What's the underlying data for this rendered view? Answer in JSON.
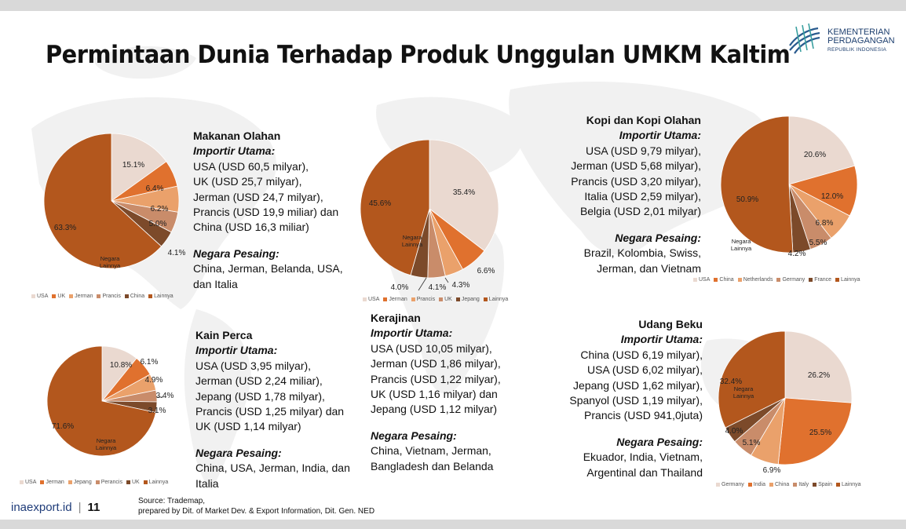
{
  "title": "Permintaan Dunia Terhadap Produk Unggulan UMKM Kaltim",
  "logo": {
    "line1": "KEMENTERIAN",
    "line2": "PERDAGANGAN",
    "line3": "REPUBLIK INDONESIA"
  },
  "footer": {
    "site": "inaexport.id",
    "page": "11"
  },
  "source": {
    "line1": "Source: Trademap,",
    "line2": "prepared by Dit. of Market Dev. & Export Information, Dit. Gen. NED"
  },
  "colors": {
    "light": "#ead9d0",
    "orange": "#e0712e",
    "peach": "#eaa16b",
    "tan": "#c98c6a",
    "brown": "#7c4a2a",
    "main": "#b3571d"
  },
  "chart_data": [
    {
      "type": "pie",
      "title": "",
      "labels": [
        "USA",
        "UK",
        "Jerman",
        "Prancis",
        "China",
        "Lainnya"
      ],
      "values": [
        15.1,
        6.4,
        6.2,
        5.0,
        4.1,
        63.3
      ],
      "value_labels": [
        "15.1%",
        "6.4%",
        "6.2%",
        "5.0%",
        "4.1%",
        "63.3%"
      ],
      "slice_annotation": "Negara Lainnya",
      "colors": [
        "#ead9d0",
        "#e0712e",
        "#eaa16b",
        "#c98c6a",
        "#7c4a2a",
        "#b3571d"
      ],
      "legend": "bottom"
    },
    {
      "type": "pie",
      "title": "",
      "labels": [
        "USA",
        "Jerman",
        "Prancis",
        "UK",
        "Jepang",
        "Lainnya"
      ],
      "values": [
        35.4,
        6.6,
        4.3,
        4.1,
        4.0,
        45.6
      ],
      "value_labels": [
        "35.4%",
        "6.6%",
        "4.3%",
        "4.1%",
        "4.0%",
        "45.6%"
      ],
      "slice_annotation": "Negara Lainnya",
      "colors": [
        "#ead9d0",
        "#e0712e",
        "#eaa16b",
        "#c98c6a",
        "#7c4a2a",
        "#b3571d"
      ],
      "legend": "bottom"
    },
    {
      "type": "pie",
      "title": "",
      "labels": [
        "USA",
        "China",
        "Netherlands",
        "Germany",
        "France",
        "Lainnya"
      ],
      "values": [
        20.6,
        12.0,
        6.8,
        5.5,
        4.2,
        50.9
      ],
      "value_labels": [
        "20.6%",
        "12.0%",
        "6.8%",
        "5.5%",
        "4.2%",
        "50.9%"
      ],
      "slice_annotation": "Negara Lainnya",
      "colors": [
        "#ead9d0",
        "#e0712e",
        "#eaa16b",
        "#c98c6a",
        "#7c4a2a",
        "#b3571d"
      ],
      "legend": "bottom"
    },
    {
      "type": "pie",
      "title": "",
      "labels": [
        "USA",
        "Jerman",
        "Jepang",
        "Perancis",
        "UK",
        "Lainnya"
      ],
      "values": [
        10.8,
        6.1,
        4.9,
        3.4,
        3.1,
        71.6
      ],
      "value_labels": [
        "10.8%",
        "6.1%",
        "4.9%",
        "3.4%",
        "3.1%",
        "71.6%"
      ],
      "slice_annotation": "Negara Lainnya",
      "colors": [
        "#ead9d0",
        "#e0712e",
        "#eaa16b",
        "#c98c6a",
        "#7c4a2a",
        "#b3571d"
      ],
      "legend": "bottom"
    },
    {
      "type": "pie",
      "title": "",
      "labels": [
        "Germany",
        "India",
        "China",
        "Italy",
        "Spain",
        "Lainnya"
      ],
      "values": [
        26.2,
        25.5,
        6.9,
        5.1,
        4.0,
        32.4
      ],
      "value_labels": [
        "26.2%",
        "25.5%",
        "6.9%",
        "5.1%",
        "4.0%",
        "32.4%"
      ],
      "slice_annotation": "Negara Lainnya",
      "colors": [
        "#ead9d0",
        "#e0712e",
        "#eaa16b",
        "#c98c6a",
        "#7c4a2a",
        "#b3571d"
      ],
      "legend": "bottom"
    }
  ],
  "blocks": {
    "makanan": {
      "title": "Makanan Olahan",
      "importir_label": "Importir Utama:",
      "importir": [
        "USA (USD 60,5 milyar),",
        "UK (USD 25,7 milyar),",
        "Jerman (USD 24,7 milyar),",
        "Prancis (USD 19,9 miliar) dan",
        "China (USD 16,3 miliar)"
      ],
      "pesaing_label": "Negara Pesaing:",
      "pesaing": [
        "China, Jerman, Belanda, USA,",
        "dan Italia"
      ]
    },
    "kopi": {
      "title": "Kopi dan Kopi Olahan",
      "importir_label": "Importir Utama:",
      "importir": [
        "USA (USD 9,79 milyar),",
        "Jerman (USD 5,68 milyar),",
        "Prancis (USD 3,20 milyar),",
        "Italia (USD 2,59 milyar),",
        "Belgia (USD 2,01 milyar)"
      ],
      "pesaing_label": "Negara Pesaing:",
      "pesaing": [
        "Brazil, Kolombia, Swiss,",
        "Jerman, dan Vietnam"
      ]
    },
    "kain": {
      "title": "Kain Perca",
      "importir_label": "Importir Utama:",
      "importir": [
        "USA (USD 3,95 milyar),",
        "Jerman (USD 2,24 miliar),",
        "Jepang (USD 1,78 milyar),",
        "Prancis (USD 1,25 milyar) dan",
        "UK (USD 1,14 milyar)"
      ],
      "pesaing_label": "Negara Pesaing:",
      "pesaing": [
        "China, USA, Jerman, India, dan",
        "Italia"
      ]
    },
    "kerajinan": {
      "title": "Kerajinan",
      "importir_label": "Importir Utama:",
      "importir": [
        "USA (USD 10,05 milyar),",
        "Jerman (USD 1,86 milyar),",
        "Prancis (USD 1,22 milyar),",
        "UK (USD 1,16 milyar) dan",
        "Jepang (USD 1,12 milyar)"
      ],
      "pesaing_label": "Negara Pesaing:",
      "pesaing": [
        "China, Vietnam, Jerman,",
        "Bangladesh dan Belanda"
      ]
    },
    "udang": {
      "title": "Udang Beku",
      "importir_label": "Importir Utama:",
      "importir": [
        "China (USD 6,19 milyar),",
        "USA (USD 6,02 milyar),",
        "Jepang (USD 1,62 milyar),",
        "Spanyol (USD 1,19 milyar),",
        "Prancis (USD 941,0juta)"
      ],
      "pesaing_label": "Negara Pesaing:",
      "pesaing": [
        "Ekuador, India, Vietnam,",
        "Argentinal dan Thailand"
      ]
    }
  }
}
